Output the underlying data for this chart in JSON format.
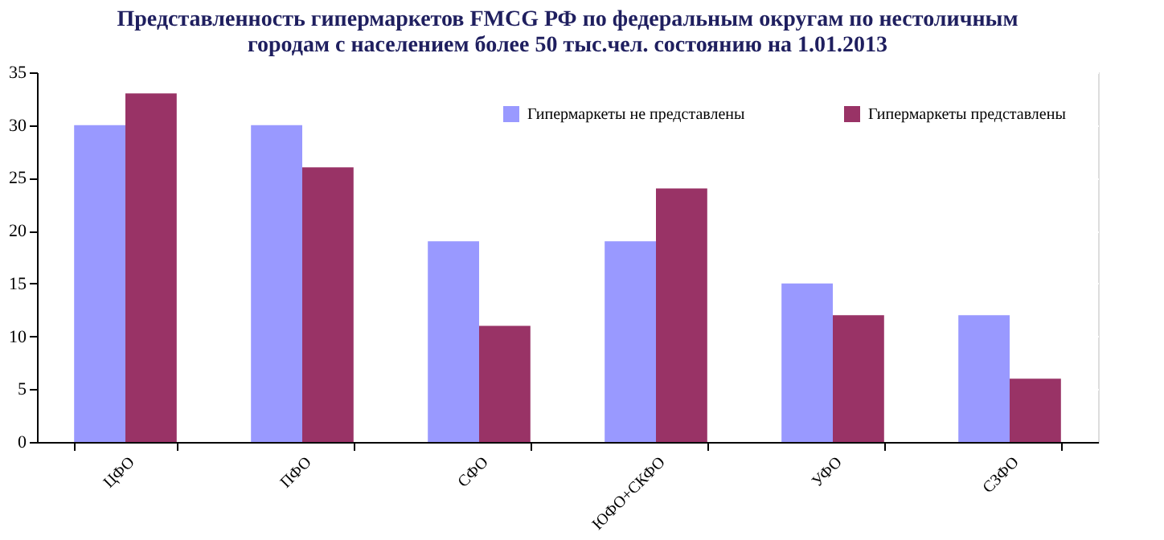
{
  "chart_data": {
    "type": "bar",
    "title": [
      "Представленность гипермаркетов FMCG РФ по федеральным округам по нестоличным",
      "городам с населением более 50 тыс.чел. состоянию на 1.01.2013"
    ],
    "categories": [
      "ЦФО",
      "ПФО",
      "СФО",
      "ЮФО+СКФО",
      "УФО",
      "СЗФО"
    ],
    "series": [
      {
        "name": "Гипермаркеты не представлены",
        "color": "#9999ff",
        "values": [
          30,
          30,
          19,
          19,
          15,
          12
        ]
      },
      {
        "name": "Гипермаркеты представлены",
        "color": "#993366",
        "values": [
          33,
          26,
          11,
          24,
          12,
          6
        ]
      }
    ],
    "ylim": [
      0,
      35
    ],
    "yticks": [
      0,
      5,
      10,
      15,
      20,
      25,
      30,
      35
    ],
    "grid": "y",
    "legend": "top right"
  }
}
